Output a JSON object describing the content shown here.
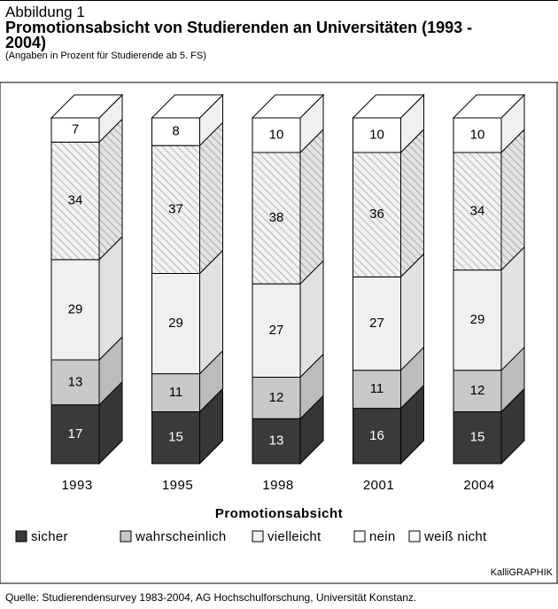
{
  "chart_data": {
    "type": "stacked_bar_3d",
    "figure_label": "Abbildung 1",
    "title": "Promotionsabsicht von Studierenden an Universitäten (1993 - 2004)",
    "subtitle": "(Angaben in Prozent für Studierende ab 5. FS)",
    "legend_title": "Promotionsabsicht",
    "credit": "KalliGRAPHIK",
    "source": "Quelle: Studierendensurvey 1983-2004, AG Hochschulforschung, Universität Konstanz.",
    "categories": [
      "1993",
      "1995",
      "1998",
      "2001",
      "2004"
    ],
    "series": [
      {
        "name": "sicher",
        "color": "#3a3a3a",
        "values": [
          17,
          15,
          13,
          16,
          15
        ]
      },
      {
        "name": "wahrscheinlich",
        "color": "#c8c8c8",
        "values": [
          13,
          11,
          12,
          11,
          12
        ]
      },
      {
        "name": "vielleicht",
        "color": "#f0f0f0",
        "values": [
          29,
          29,
          27,
          27,
          29
        ]
      },
      {
        "name": "nein",
        "color": "#e6e6e6",
        "hatch": true,
        "values": [
          34,
          37,
          38,
          36,
          34
        ]
      },
      {
        "name": "weiß nicht",
        "color": "#ffffff",
        "values": [
          7,
          8,
          10,
          10,
          10
        ]
      }
    ]
  }
}
